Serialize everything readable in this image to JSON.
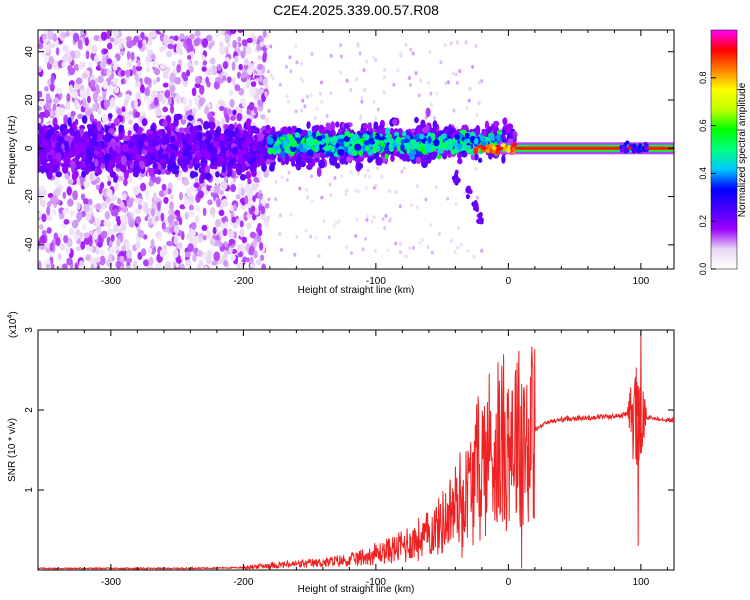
{
  "figure": {
    "title": "C2E4.2025.339.00.57.R08"
  },
  "chart_data": [
    {
      "type": "heatmap",
      "title": "C2E4.2025.339.00.57.R08",
      "xlabel": "Height of straight line (km)",
      "ylabel": "Frequency (Hz)",
      "xlim": [
        -355,
        125
      ],
      "ylim": [
        -50,
        49
      ],
      "xticks": [
        -300,
        -200,
        -100,
        0,
        100
      ],
      "yticks": [
        -40,
        -20,
        0,
        20,
        40
      ],
      "xtick_labels": [
        "-300",
        "-200",
        "-100",
        "0",
        "100"
      ],
      "ytick_labels": [
        "-40",
        "-20",
        "0",
        "20",
        "40"
      ],
      "colorbar": {
        "label": "Normalized spectral amplitude",
        "range": [
          0,
          1
        ],
        "ticks": [
          0.0,
          0.2,
          0.4,
          0.6,
          0.8
        ],
        "tick_labels": [
          "0.0",
          "0.2",
          "0.4",
          "0.6",
          "0.8"
        ],
        "colormap": [
          "#ffffff",
          "#e8d6f5",
          "#9b00ff",
          "#4b00ff",
          "#0000ff",
          "#00c8ff",
          "#00ff80",
          "#00ff00",
          "#c0ff00",
          "#ffff00",
          "#ff8000",
          "#ff0000",
          "#ff00ff"
        ]
      },
      "features": {
        "carrier_frequency_hz": 0,
        "noise_cutoff_km": -190,
        "tail_points": [
          [
            -40,
            -12
          ],
          [
            -30,
            -18
          ],
          [
            -25,
            -24
          ],
          [
            -21,
            -29
          ]
        ]
      }
    },
    {
      "type": "line",
      "xlabel": "Height of straight line (km)",
      "ylabel": "SNR (10 * v/v)",
      "scale_label": "(x10",
      "scale_exponent": "4",
      "scale_suffix": ")",
      "xlim": [
        -355,
        125
      ],
      "ylim": [
        0,
        3
      ],
      "xticks": [
        -300,
        -200,
        -100,
        0,
        100
      ],
      "yticks": [
        1,
        2,
        3
      ],
      "xtick_labels": [
        "-300",
        "-200",
        "-100",
        "0",
        "100"
      ],
      "ytick_labels": [
        "1",
        "2",
        "3"
      ],
      "line_color": "#ee2222",
      "series": [
        {
          "name": "SNR",
          "x": [
            -355,
            -300,
            -250,
            -200,
            -180,
            -150,
            -120,
            -100,
            -80,
            -60,
            -50,
            -40,
            -30,
            -25,
            -20,
            -15,
            -10,
            -5,
            0,
            5,
            10,
            15,
            20,
            30,
            40,
            50,
            60,
            70,
            80,
            90,
            95,
            100,
            105,
            110,
            125
          ],
          "y": [
            0.02,
            0.02,
            0.02,
            0.03,
            0.06,
            0.08,
            0.12,
            0.2,
            0.3,
            0.45,
            0.6,
            0.8,
            1.0,
            1.2,
            1.35,
            1.45,
            1.55,
            1.62,
            1.7,
            1.75,
            1.8,
            1.55,
            1.75,
            1.85,
            1.88,
            1.9,
            1.9,
            1.92,
            1.92,
            1.95,
            1.93,
            1.92,
            1.9,
            1.9,
            1.87
          ],
          "peaks": [
            [
              -18,
              2.05
            ],
            [
              -5,
              2.05
            ],
            [
              0,
              1.4
            ],
            [
              10,
              2.05
            ],
            [
              97,
              2.35
            ],
            [
              100,
              3.0
            ]
          ],
          "dips": [
            [
              -35,
              0.15
            ],
            [
              -10,
              0.7
            ],
            [
              10,
              0.02
            ],
            [
              15,
              0.6
            ],
            [
              98,
              0.3
            ]
          ]
        }
      ]
    }
  ]
}
